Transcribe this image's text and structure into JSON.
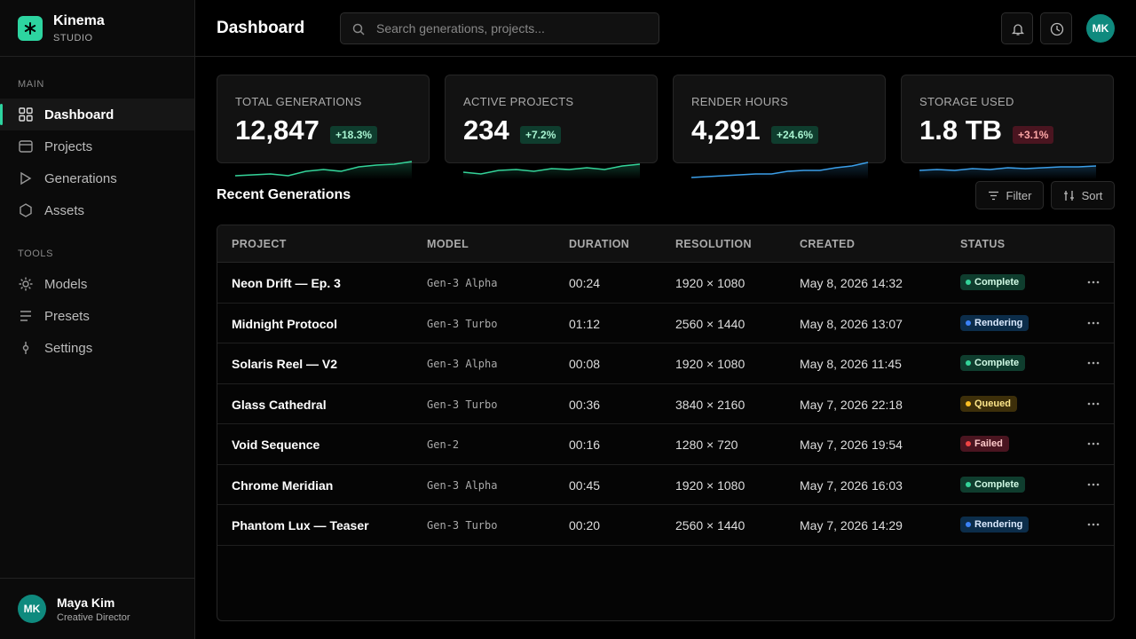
{
  "brand": {
    "name": "Kinema",
    "tagline": "STUDIO"
  },
  "nav": [
    {
      "section": "MAIN",
      "items": [
        "Dashboard",
        "Projects",
        "Generations",
        "Assets"
      ]
    },
    {
      "section": "TOOLS",
      "items": [
        "Models",
        "Presets",
        "Settings"
      ]
    }
  ],
  "user": {
    "initials": "MK",
    "name": "Maya Kim",
    "role": "Creative Director"
  },
  "header": {
    "title": "Dashboard",
    "search_placeholder": "Search generations, projects...",
    "avatar": "MK"
  },
  "stats": [
    {
      "label": "TOTAL GENERATIONS",
      "value": "12,847",
      "change": "+18.3%",
      "tone": "green",
      "color": "#34d399",
      "spark": [
        4,
        5,
        6,
        4,
        9,
        11,
        9,
        14,
        16,
        17,
        20
      ]
    },
    {
      "label": "ACTIVE PROJECTS",
      "value": "234",
      "change": "+7.2%",
      "tone": "green",
      "color": "#34d399",
      "spark": [
        8,
        6,
        10,
        11,
        9,
        12,
        11,
        13,
        11,
        15,
        17
      ]
    },
    {
      "label": "RENDER HOURS",
      "value": "4,291",
      "change": "+24.6%",
      "tone": "green",
      "color": "#3b9ee8",
      "spark": [
        2,
        3,
        4,
        5,
        6,
        6,
        9,
        10,
        10,
        13,
        15,
        19
      ]
    },
    {
      "label": "STORAGE USED",
      "value": "1.8 TB",
      "change": "+3.1%",
      "tone": "red",
      "color": "#3b9ee8",
      "spark": [
        10,
        11,
        10,
        12,
        11,
        13,
        12,
        13,
        14,
        14,
        15
      ]
    }
  ],
  "section": {
    "title": "Recent Generations",
    "filter": "Filter",
    "sort": "Sort"
  },
  "table": {
    "columns": [
      "PROJECT",
      "MODEL",
      "DURATION",
      "RESOLUTION",
      "CREATED",
      "STATUS"
    ],
    "rows": [
      [
        "Neon Drift — Ep. 3",
        "Gen-3 Alpha",
        "00:24",
        "1920 × 1080",
        "May 8, 2026 14:32",
        "Complete"
      ],
      [
        "Midnight Protocol",
        "Gen-3 Turbo",
        "01:12",
        "2560 × 1440",
        "May 8, 2026 13:07",
        "Rendering"
      ],
      [
        "Solaris Reel — V2",
        "Gen-3 Alpha",
        "00:08",
        "1920 × 1080",
        "May 8, 2026 11:45",
        "Complete"
      ],
      [
        "Glass Cathedral",
        "Gen-3 Turbo",
        "00:36",
        "3840 × 2160",
        "May 7, 2026 22:18",
        "Queued"
      ],
      [
        "Void Sequence",
        "Gen-2",
        "00:16",
        "1280 × 720",
        "May 7, 2026 19:54",
        "Failed"
      ],
      [
        "Chrome Meridian",
        "Gen-3 Alpha",
        "00:45",
        "1920 × 1080",
        "May 7, 2026 16:03",
        "Complete"
      ],
      [
        "Phantom Lux — Teaser",
        "Gen-3 Turbo",
        "00:20",
        "2560 × 1440",
        "May 7, 2026 14:29",
        "Rendering"
      ]
    ],
    "status_tones": [
      "green",
      "blue",
      "green",
      "amber",
      "red",
      "green",
      "blue"
    ]
  }
}
